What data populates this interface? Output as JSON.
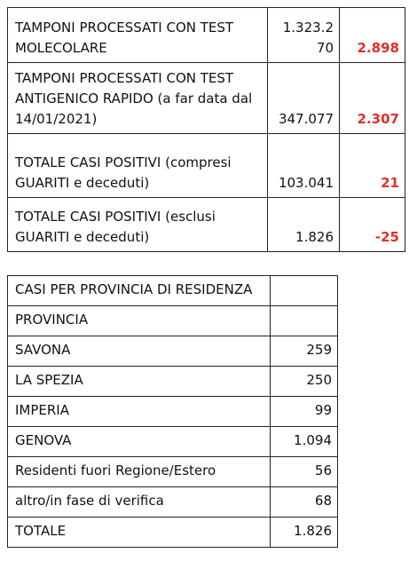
{
  "summary_table": {
    "rows": [
      [
        "TAMPONI PROCESSATI CON TEST MOLECOLARE",
        "1.323.270",
        "2.898"
      ],
      [
        "TAMPONI PROCESSATI CON TEST ANTIGENICO RAPIDO (a far data dal 14/01/2021)",
        "347.077",
        "2.307"
      ],
      [
        "TOTALE CASI POSITIVI  (compresi GUARITI e deceduti)",
        "103.041",
        "21"
      ],
      [
        "TOTALE CASI POSITIVI (esclusi GUARITI e deceduti)",
        "1.826",
        "-25"
      ]
    ]
  },
  "province_table": {
    "title": "CASI PER PROVINCIA DI RESIDENZA",
    "header": "PROVINCIA",
    "rows": [
      [
        "SAVONA",
        "259"
      ],
      [
        "LA SPEZIA",
        "250"
      ],
      [
        "IMPERIA",
        "99"
      ],
      [
        "GENOVA",
        "1.094"
      ],
      [
        "Residenti fuori Regione/Estero",
        "56"
      ],
      [
        "altro/in fase di verifica",
        "68"
      ],
      [
        "TOTALE",
        "1.826"
      ]
    ]
  }
}
